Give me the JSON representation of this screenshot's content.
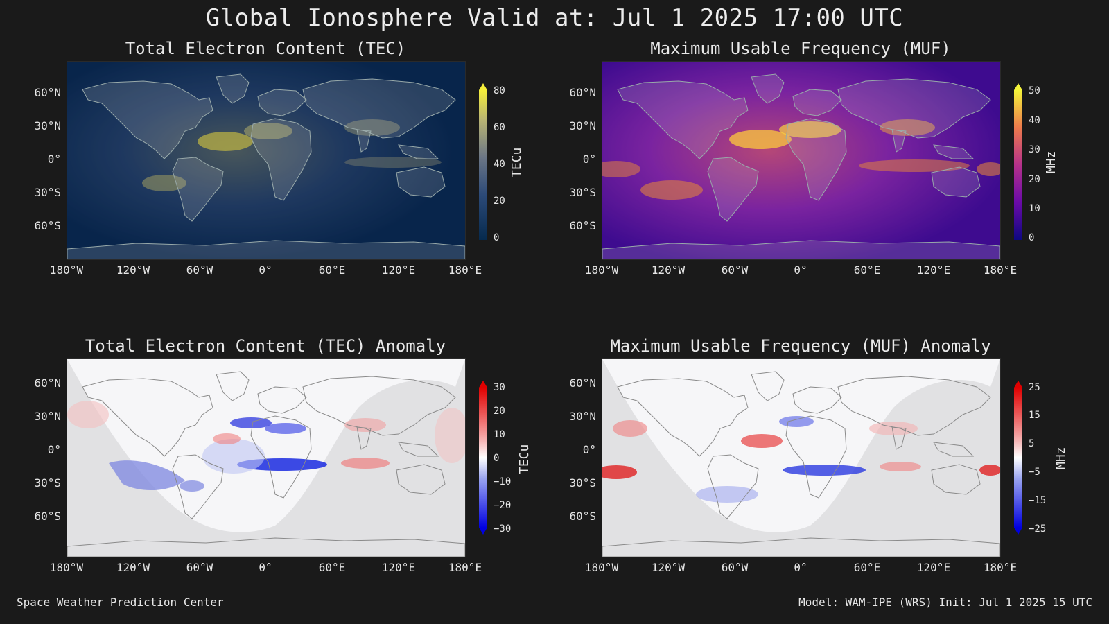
{
  "title": "Global Ionosphere Valid at: Jul 1 2025 17:00 UTC",
  "footer": {
    "left": "Space Weather Prediction Center",
    "right": "Model: WAM-IPE (WRS) Init: Jul 1 2025 15 UTC"
  },
  "lat_labels": [
    "60°N",
    "30°N",
    "0°",
    "30°S",
    "60°S"
  ],
  "lon_labels": [
    "180°W",
    "120°W",
    "60°W",
    "0°",
    "60°E",
    "120°E",
    "180°E"
  ],
  "panels": {
    "tec": {
      "title": "Total Electron Content (TEC)",
      "cbar_label": "TECu",
      "cbar_ticks": [
        "80",
        "60",
        "40",
        "20",
        "0"
      ],
      "colors": {
        "low": "#0a2a5a",
        "mid": "#5c6c86",
        "high": "#f5e64a"
      }
    },
    "muf": {
      "title": "Maximum Usable Frequency (MUF)",
      "cbar_label": "MHz",
      "cbar_ticks": [
        "50",
        "40",
        "30",
        "20",
        "10",
        "0"
      ],
      "colors": {
        "low": "#1a0a6a",
        "mid": "#b03aa0",
        "high": "#f8e040"
      }
    },
    "tec_anom": {
      "title": "Total Electron Content (TEC) Anomaly",
      "cbar_label": "TECu",
      "cbar_ticks": [
        "30",
        "20",
        "10",
        "0",
        "−10",
        "−20",
        "−30"
      ],
      "colors": {
        "low": "#0000ff",
        "mid": "#ffffff",
        "high": "#ff0000"
      }
    },
    "muf_anom": {
      "title": "Maximum Usable Frequency (MUF) Anomaly",
      "cbar_label": "MHz",
      "cbar_ticks": [
        "25",
        "15",
        "5",
        "−5",
        "−15",
        "−25"
      ],
      "colors": {
        "low": "#0000ff",
        "mid": "#ffffff",
        "high": "#ff0000"
      }
    }
  }
}
